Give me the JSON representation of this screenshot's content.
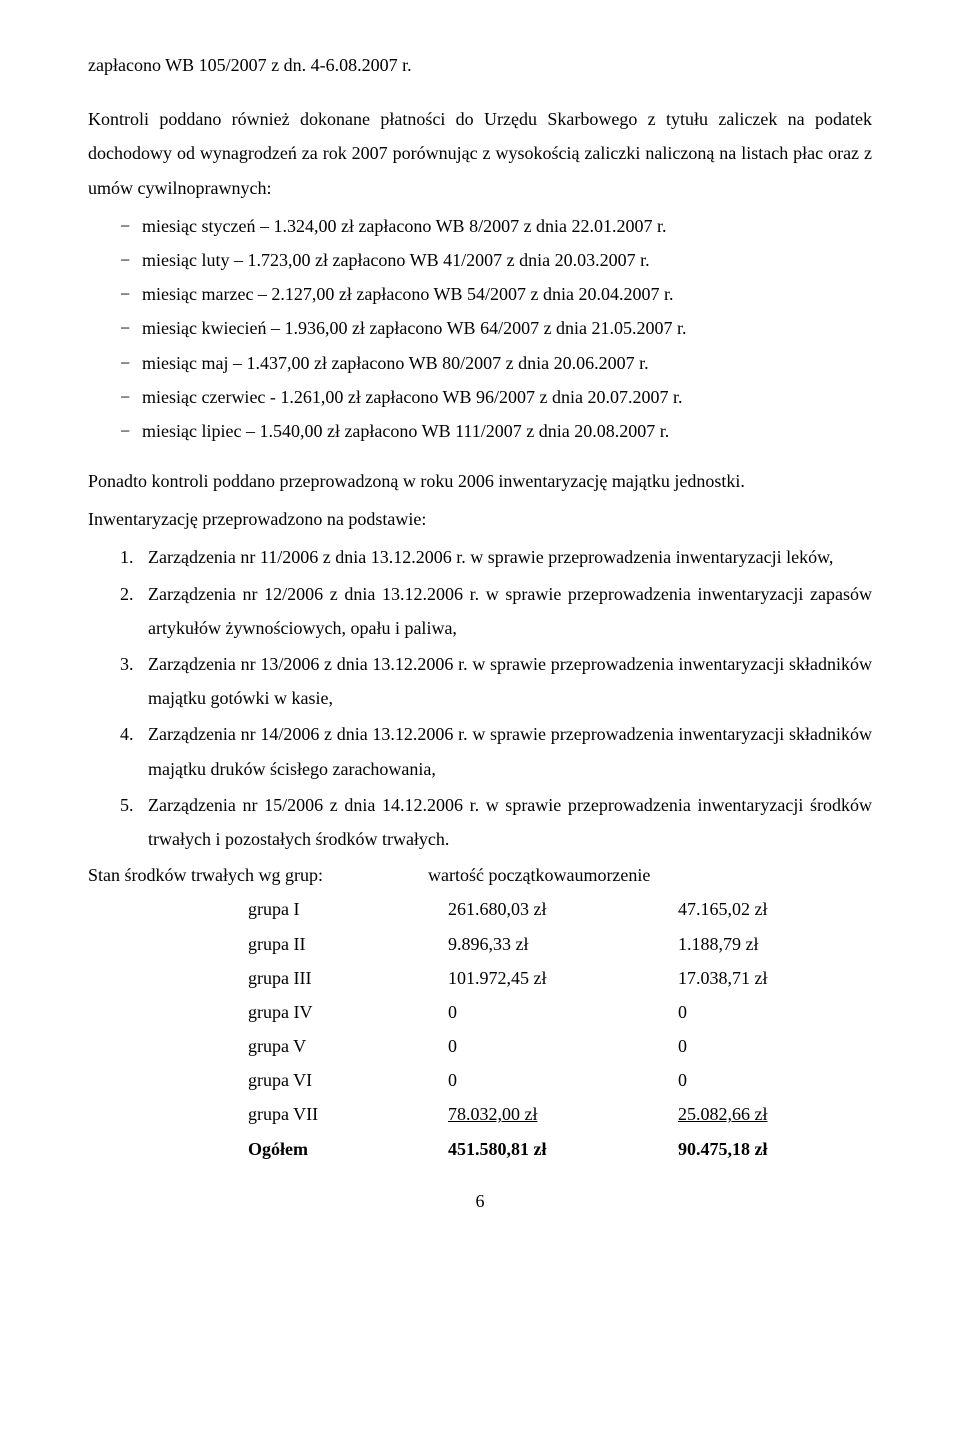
{
  "intro_line": "zapłacono WB 105/2007 z dn. 4-6.08.2007 r.",
  "para1": "Kontroli poddano również dokonane płatności do Urzędu Skarbowego z tytułu zaliczek na podatek dochodowy od wynagrodzeń za rok 2007 porównując z wysokością zaliczki naliczoną na listach płac oraz z umów cywilnoprawnych:",
  "months": [
    "miesiąc styczeń – 1.324,00 zł zapłacono WB 8/2007 z dnia 22.01.2007 r.",
    "miesiąc luty – 1.723,00 zł zapłacono WB 41/2007 z dnia 20.03.2007 r.",
    "miesiąc marzec – 2.127,00 zł zapłacono WB 54/2007 z dnia 20.04.2007 r.",
    "miesiąc kwiecień – 1.936,00 zł zapłacono WB 64/2007 z dnia 21.05.2007 r.",
    "miesiąc maj – 1.437,00 zł zapłacono WB 80/2007 z dnia 20.06.2007 r.",
    "miesiąc czerwiec - 1.261,00 zł zapłacono WB 96/2007 z dnia 20.07.2007 r.",
    "miesiąc lipiec – 1.540,00 zł zapłacono WB 111/2007 z dnia 20.08.2007 r."
  ],
  "para2": "Ponadto kontroli poddano przeprowadzoną w roku 2006 inwentaryzację majątku jednostki.",
  "para3": "Inwentaryzację przeprowadzono na podstawie:",
  "decrees": [
    "Zarządzenia nr 11/2006 z dnia 13.12.2006 r. w sprawie przeprowadzenia inwentaryzacji leków,",
    "Zarządzenia nr 12/2006 z dnia 13.12.2006 r. w sprawie przeprowadzenia inwentaryzacji zapasów artykułów żywnościowych, opału i paliwa,",
    "Zarządzenia nr 13/2006 z dnia 13.12.2006 r. w sprawie przeprowadzenia inwentaryzacji składników majątku gotówki w kasie,",
    "Zarządzenia nr 14/2006 z dnia 13.12.2006 r. w sprawie przeprowadzenia inwentaryzacji składników majątku druków ścisłego zarachowania,",
    "Zarządzenia nr 15/2006 z dnia 14.12.2006 r. w sprawie przeprowadzenia inwentaryzacji środków trwałych i pozostałych środków trwałych."
  ],
  "assets_header": {
    "label": "Stan środków trwałych wg grup:",
    "col_begin": "wartość początkowa",
    "col_amort": "umorzenie"
  },
  "groups": [
    {
      "name": "grupa I",
      "begin": "261.680,03 zł",
      "amort": "47.165,02 zł"
    },
    {
      "name": "grupa II",
      "begin": "9.896,33 zł",
      "amort": "1.188,79 zł"
    },
    {
      "name": "grupa III",
      "begin": "101.972,45 zł",
      "amort": "17.038,71 zł"
    },
    {
      "name": "grupa IV",
      "begin": "0",
      "amort": "0"
    },
    {
      "name": "grupa V",
      "begin": "0",
      "amort": "0"
    },
    {
      "name": "grupa VI",
      "begin": "0",
      "amort": "0"
    }
  ],
  "group_vii": {
    "name": "grupa VII",
    "begin": "78.032,00 zł",
    "amort": "25.082,66 zł"
  },
  "totals": {
    "name": "Ogółem",
    "begin": "451.580,81 zł",
    "amort": "90.475,18 zł"
  },
  "pagenum": "6",
  "colors": {
    "text": "#000000",
    "background": "#ffffff"
  },
  "typography": {
    "font_family": "Times New Roman",
    "body_size_pt": 13,
    "line_height": 1.9
  }
}
